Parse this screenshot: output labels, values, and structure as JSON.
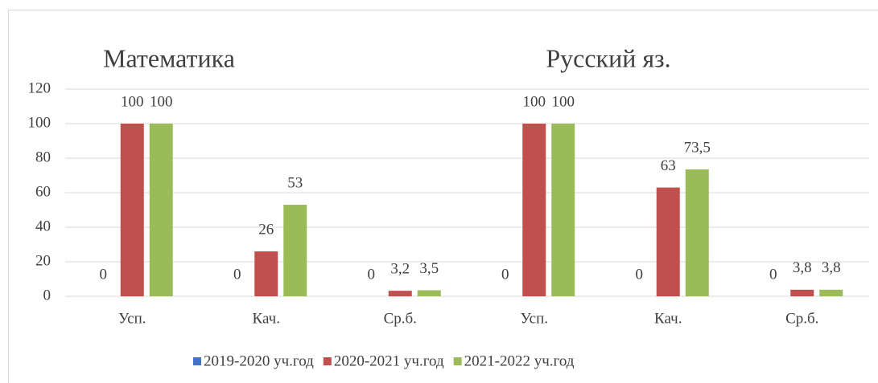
{
  "chart_data": {
    "type": "bar",
    "group_titles": [
      "Математика",
      "Русский яз."
    ],
    "categories": [
      "Усп.",
      "Кач.",
      "Ср.б.",
      "Усп.",
      "Кач.",
      "Ср.б."
    ],
    "series": [
      {
        "name": "2019-2020 уч.год",
        "color": "#4472c4",
        "values": [
          0,
          0,
          0,
          0,
          0,
          0
        ]
      },
      {
        "name": "2020-2021 уч.год",
        "color": "#c0504d",
        "values": [
          100,
          26,
          3.2,
          100,
          63,
          3.8
        ],
        "value_labels": [
          "100",
          "26",
          "3,2",
          "100",
          "63",
          "3,8"
        ]
      },
      {
        "name": "2021-2022 уч.год",
        "color": "#9bbb59",
        "values": [
          100,
          53,
          3.5,
          100,
          73.5,
          3.8
        ],
        "value_labels": [
          "100",
          "53",
          "3,5",
          "100",
          "73,5",
          "3,8"
        ]
      }
    ],
    "ylim": [
      0,
      120
    ],
    "yticks": [
      0,
      20,
      40,
      60,
      80,
      100,
      120
    ],
    "grid": true,
    "legend": "bottom"
  }
}
